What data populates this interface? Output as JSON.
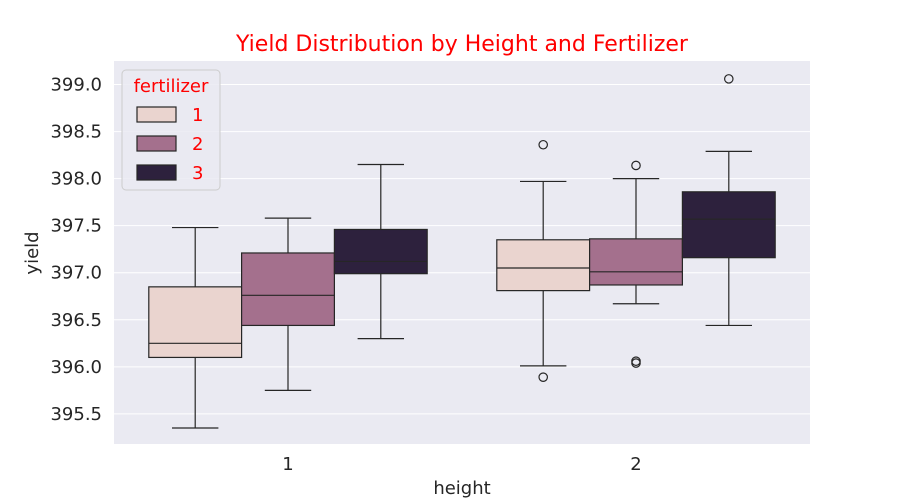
{
  "chart_data": {
    "type": "box",
    "title": "Yield Distribution by Height and Fertilizer",
    "title_color": "#ff0000",
    "xlabel": "height",
    "ylabel": "yield",
    "categories": [
      "1",
      "2"
    ],
    "ylim": [
      395.18,
      399.25
    ],
    "yticks": [
      "395.5",
      "396.0",
      "396.5",
      "397.0",
      "397.5",
      "398.0",
      "398.5",
      "399.0"
    ],
    "grid": true,
    "legend": {
      "title": "fertilizer",
      "placement": "top-left",
      "text_color": "#ff0000"
    },
    "series": [
      {
        "name": "1",
        "color": "#ead4cf",
        "boxes": [
          {
            "whislo": 395.35,
            "q1": 396.1,
            "med": 396.25,
            "q3": 396.85,
            "whishi": 397.48,
            "fliers": []
          },
          {
            "whislo": 396.01,
            "q1": 396.81,
            "med": 397.05,
            "q3": 397.35,
            "whishi": 397.97,
            "fliers": [
              395.89,
              398.36
            ]
          }
        ]
      },
      {
        "name": "2",
        "color": "#a4708d",
        "boxes": [
          {
            "whislo": 395.75,
            "q1": 396.44,
            "med": 396.76,
            "q3": 397.21,
            "whishi": 397.58,
            "fliers": []
          },
          {
            "whislo": 396.67,
            "q1": 396.87,
            "med": 397.01,
            "q3": 397.36,
            "whishi": 398.0,
            "fliers": [
              396.04,
              396.06,
              398.14
            ]
          }
        ]
      },
      {
        "name": "3",
        "color": "#2d213d",
        "boxes": [
          {
            "whislo": 396.3,
            "q1": 396.99,
            "med": 397.12,
            "q3": 397.46,
            "whishi": 398.15,
            "fliers": []
          },
          {
            "whislo": 396.44,
            "q1": 397.16,
            "med": 397.57,
            "q3": 397.86,
            "whishi": 398.29,
            "fliers": [
              399.06
            ]
          }
        ]
      }
    ]
  }
}
